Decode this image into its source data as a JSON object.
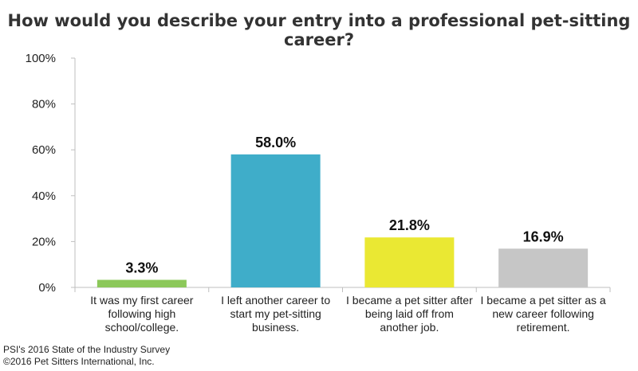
{
  "chart_data": {
    "type": "bar",
    "title": "How would you describe your entry into a professional pet-sitting career?",
    "categories": [
      [
        "It was my first career",
        "following high",
        "school/college."
      ],
      [
        "I left another career to",
        "start my pet-sitting",
        "business."
      ],
      [
        "I became a pet sitter after",
        "being laid off from",
        "another job."
      ],
      [
        "I became a pet sitter as a",
        "new career following",
        "retirement."
      ]
    ],
    "values": [
      3.3,
      58.0,
      21.8,
      16.9
    ],
    "value_labels": [
      "3.3%",
      "58.0%",
      "21.8%",
      "16.9%"
    ],
    "colors": [
      "#8cc85a",
      "#3fadc9",
      "#eae833",
      "#c6c6c6"
    ],
    "yticks": [
      "0%",
      "20%",
      "40%",
      "60%",
      "80%",
      "100%"
    ],
    "ylim": [
      0,
      100
    ],
    "grid": false,
    "legend": "none"
  },
  "source": {
    "line1": "PSI's 2016 State of the Industry Survey",
    "line2": "©2016 Pet Sitters International, Inc."
  }
}
